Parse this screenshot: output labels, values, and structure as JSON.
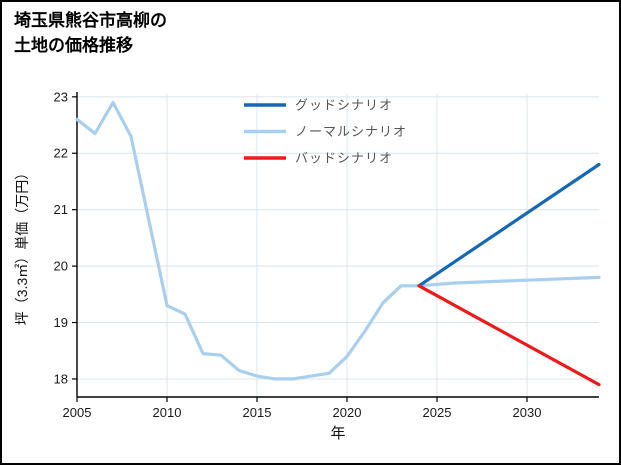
{
  "page": {
    "title_line1": "埼玉県熊谷市高柳の",
    "title_line2": "土地の価格推移"
  },
  "chart_data": {
    "type": "line",
    "title": "埼玉県熊谷市高柳の土地の価格推移",
    "xlabel": "年",
    "ylabel": "坪（3.3㎡）単価（万円）",
    "xlim": [
      2005,
      2034
    ],
    "ylim": [
      17.68,
      23.05
    ],
    "xticks": [
      2005,
      2010,
      2015,
      2020,
      2025,
      2030
    ],
    "yticks": [
      18,
      19,
      20,
      21,
      22,
      23
    ],
    "grid": true,
    "grid_color": "#dbe5ee",
    "axis_color": "#000000",
    "tick_label_color": "#1a1a1a",
    "legend_position": "top-center-inside",
    "legend_text_color": "#555555",
    "series": [
      {
        "name": "グッドシナリオ",
        "color": "#1568b5",
        "width": 3.2,
        "z": 2,
        "x": [
          2024,
          2034
        ],
        "y": [
          19.65,
          21.8
        ]
      },
      {
        "name": "ノーマルシナリオ",
        "color": "#a8cff0",
        "width": 3.2,
        "z": 1,
        "x": [
          2005,
          2006,
          2007,
          2008,
          2009,
          2010,
          2011,
          2012,
          2013,
          2014,
          2015,
          2016,
          2017,
          2018,
          2019,
          2020,
          2021,
          2022,
          2023,
          2024,
          2026,
          2030,
          2034
        ],
        "y": [
          22.6,
          22.35,
          22.9,
          22.3,
          20.8,
          19.3,
          19.15,
          18.45,
          18.42,
          18.15,
          18.05,
          18.0,
          18.0,
          18.05,
          18.1,
          18.4,
          18.85,
          19.35,
          19.65,
          19.65,
          19.7,
          19.75,
          19.8
        ]
      },
      {
        "name": "バッドシナリオ",
        "color": "#ee1a1a",
        "width": 3.2,
        "z": 3,
        "x": [
          2024,
          2034
        ],
        "y": [
          19.65,
          17.9
        ]
      }
    ]
  }
}
